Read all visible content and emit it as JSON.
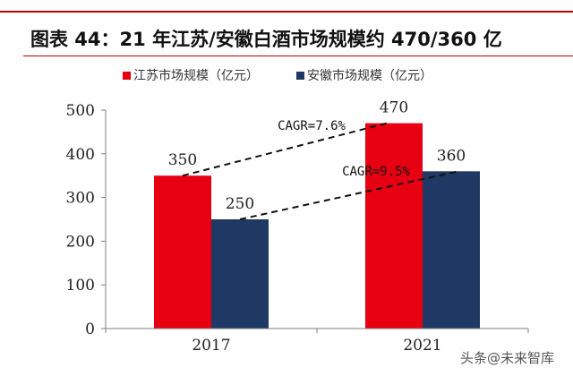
{
  "header": {
    "title": "图表 44：21 年江苏/安徽白酒市场规模约 470/360 亿"
  },
  "watermark": "头条@未来智库",
  "colors": {
    "series_1": "#e60012",
    "series_2": "#1f3864",
    "accent_line": "#c00000",
    "axis": "#7f7f7f"
  },
  "chart_data": {
    "type": "bar",
    "categories": [
      "2017",
      "2021"
    ],
    "series": [
      {
        "name": "江苏市场规模（亿元）",
        "values": [
          350,
          470
        ]
      },
      {
        "name": "安徽市场规模（亿元）",
        "values": [
          250,
          360
        ]
      }
    ],
    "ylim": [
      0,
      500
    ],
    "yticks": [
      0,
      100,
      200,
      300,
      400,
      500
    ],
    "grid": false,
    "legend": "top-center",
    "annotations": [
      {
        "text": "CAGR=7.6%",
        "series": 0
      },
      {
        "text": "CAGR=9.5%",
        "series": 1
      }
    ]
  }
}
